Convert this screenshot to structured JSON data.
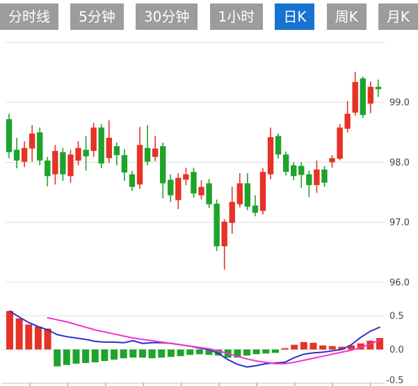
{
  "toolbar": {
    "tabs": [
      {
        "id": "time-line",
        "label": "分时线",
        "active": false
      },
      {
        "id": "5min",
        "label": "5分钟",
        "active": false
      },
      {
        "id": "30min",
        "label": "30分钟",
        "active": false
      },
      {
        "id": "1hour",
        "label": "1小时",
        "active": false
      },
      {
        "id": "daily-k",
        "label": "日K",
        "active": true
      },
      {
        "id": "weekly-k",
        "label": "周K",
        "active": false
      },
      {
        "id": "monthly-k",
        "label": "月K",
        "active": false
      }
    ],
    "colors": {
      "tab_bg": "#9c9c9c",
      "tab_active_bg": "#1673d0",
      "tab_text": "#ffffff"
    }
  },
  "chart_data": [
    {
      "type": "candlestick",
      "title": "",
      "xlabel": "",
      "ylabel": "",
      "y_axis": {
        "tick_labels": [
          "99.0",
          "98.0",
          "97.0",
          "96.0"
        ],
        "tick_values": [
          99.0,
          98.0,
          97.0,
          96.0
        ],
        "grid_values": [
          100.0,
          99.0,
          98.0,
          97.0,
          96.0
        ],
        "range": [
          95.9,
          100.05
        ],
        "grid": "horizontal-only",
        "labels_side": "right"
      },
      "legend_position": "none",
      "colors": {
        "up": "#e63227",
        "down": "#1ea32b"
      },
      "convention": "red-up-green-down",
      "candles": [
        {
          "o": 98.72,
          "h": 98.81,
          "l": 98.07,
          "c": 98.17
        },
        {
          "o": 98.21,
          "h": 98.41,
          "l": 97.9,
          "c": 98.03
        },
        {
          "o": 98.01,
          "h": 98.35,
          "l": 97.92,
          "c": 98.24
        },
        {
          "o": 98.23,
          "h": 98.62,
          "l": 98.01,
          "c": 98.48
        },
        {
          "o": 98.5,
          "h": 98.58,
          "l": 97.95,
          "c": 98.03
        },
        {
          "o": 98.03,
          "h": 98.09,
          "l": 97.6,
          "c": 97.77
        },
        {
          "o": 97.8,
          "h": 98.29,
          "l": 97.63,
          "c": 98.19
        },
        {
          "o": 98.17,
          "h": 98.24,
          "l": 97.69,
          "c": 97.8
        },
        {
          "o": 97.77,
          "h": 98.21,
          "l": 97.66,
          "c": 98.13
        },
        {
          "o": 98.03,
          "h": 98.35,
          "l": 97.95,
          "c": 98.24
        },
        {
          "o": 98.21,
          "h": 98.44,
          "l": 97.86,
          "c": 98.1
        },
        {
          "o": 98.19,
          "h": 98.66,
          "l": 98.09,
          "c": 98.58
        },
        {
          "o": 98.58,
          "h": 98.64,
          "l": 97.9,
          "c": 97.98
        },
        {
          "o": 98.07,
          "h": 98.7,
          "l": 97.99,
          "c": 98.41
        },
        {
          "o": 98.27,
          "h": 98.33,
          "l": 97.95,
          "c": 98.12
        },
        {
          "o": 98.12,
          "h": 98.22,
          "l": 97.69,
          "c": 97.83
        },
        {
          "o": 97.8,
          "h": 97.86,
          "l": 97.52,
          "c": 97.59
        },
        {
          "o": 97.63,
          "h": 98.59,
          "l": 97.56,
          "c": 98.29
        },
        {
          "o": 98.24,
          "h": 98.62,
          "l": 97.95,
          "c": 98.01
        },
        {
          "o": 98.09,
          "h": 98.44,
          "l": 98.02,
          "c": 98.23
        },
        {
          "o": 98.27,
          "h": 98.33,
          "l": 97.4,
          "c": 97.65
        },
        {
          "o": 97.71,
          "h": 97.8,
          "l": 97.34,
          "c": 97.45
        },
        {
          "o": 97.37,
          "h": 97.82,
          "l": 97.22,
          "c": 97.74
        },
        {
          "o": 97.71,
          "h": 97.91,
          "l": 97.62,
          "c": 97.8
        },
        {
          "o": 97.84,
          "h": 97.91,
          "l": 97.41,
          "c": 97.48
        },
        {
          "o": 97.45,
          "h": 97.7,
          "l": 97.38,
          "c": 97.59
        },
        {
          "o": 97.65,
          "h": 97.72,
          "l": 97.24,
          "c": 97.3
        },
        {
          "o": 97.31,
          "h": 97.38,
          "l": 96.52,
          "c": 96.6
        },
        {
          "o": 96.6,
          "h": 97.05,
          "l": 96.21,
          "c": 97.01
        },
        {
          "o": 96.99,
          "h": 97.59,
          "l": 96.81,
          "c": 97.34
        },
        {
          "o": 97.3,
          "h": 97.82,
          "l": 97.25,
          "c": 97.65
        },
        {
          "o": 97.65,
          "h": 97.82,
          "l": 97.2,
          "c": 97.26
        },
        {
          "o": 97.28,
          "h": 97.45,
          "l": 97.1,
          "c": 97.16
        },
        {
          "o": 97.19,
          "h": 97.9,
          "l": 97.13,
          "c": 97.84
        },
        {
          "o": 97.8,
          "h": 98.58,
          "l": 97.72,
          "c": 98.42
        },
        {
          "o": 98.44,
          "h": 98.48,
          "l": 98.06,
          "c": 98.13
        },
        {
          "o": 98.13,
          "h": 98.18,
          "l": 97.78,
          "c": 97.84
        },
        {
          "o": 97.95,
          "h": 98.0,
          "l": 97.7,
          "c": 97.77
        },
        {
          "o": 97.94,
          "h": 98.0,
          "l": 97.57,
          "c": 97.79
        },
        {
          "o": 97.8,
          "h": 97.86,
          "l": 97.42,
          "c": 97.62
        },
        {
          "o": 97.62,
          "h": 98.03,
          "l": 97.49,
          "c": 97.88
        },
        {
          "o": 97.88,
          "h": 97.94,
          "l": 97.59,
          "c": 97.66
        },
        {
          "o": 98.0,
          "h": 98.12,
          "l": 97.91,
          "c": 98.07
        },
        {
          "o": 98.06,
          "h": 98.64,
          "l": 98.03,
          "c": 98.58
        },
        {
          "o": 98.56,
          "h": 99.02,
          "l": 98.5,
          "c": 98.81
        },
        {
          "o": 98.83,
          "h": 99.51,
          "l": 98.78,
          "c": 99.34
        },
        {
          "o": 99.4,
          "h": 99.43,
          "l": 98.74,
          "c": 98.79
        },
        {
          "o": 98.98,
          "h": 99.35,
          "l": 98.82,
          "c": 99.26
        },
        {
          "o": 99.26,
          "h": 99.38,
          "l": 99.09,
          "c": 99.22
        }
      ]
    },
    {
      "type": "bar",
      "subtype": "macd-histogram-with-lines",
      "title": "",
      "y_axis": {
        "tick_labels": [
          "0.5",
          "0.0",
          "-0.5"
        ],
        "tick_values": [
          0.5,
          0.0,
          -0.5
        ],
        "range": [
          -0.55,
          0.6
        ],
        "grid": "horizontal-only",
        "labels_side": "right"
      },
      "x_axis": {
        "tick_count": 10,
        "tick_labels": []
      },
      "colors": {
        "positive": "#e63227",
        "negative": "#1ea32b"
      },
      "values": [
        0.57,
        0.46,
        0.37,
        0.34,
        0.31,
        -0.25,
        -0.23,
        -0.21,
        -0.2,
        -0.19,
        -0.17,
        -0.15,
        -0.13,
        -0.12,
        -0.12,
        -0.13,
        -0.12,
        -0.11,
        -0.1,
        -0.08,
        -0.07,
        -0.08,
        -0.09,
        -0.12,
        -0.12,
        -0.09,
        -0.07,
        -0.06,
        -0.05,
        0.02,
        0.07,
        0.11,
        0.1,
        0.06,
        0.05,
        0.04,
        0.06,
        0.09,
        0.13,
        0.17
      ],
      "series": [
        {
          "name": "DIF",
          "color": "#2b2dd0",
          "start_index": 0,
          "values": [
            0.57,
            0.48,
            0.4,
            0.34,
            0.29,
            0.22,
            0.19,
            0.17,
            0.15,
            0.12,
            0.11,
            0.11,
            0.1,
            0.13,
            0.09,
            0.1,
            0.1,
            0.09,
            0.07,
            0.05,
            0.02,
            0.0,
            -0.06,
            -0.15,
            -0.22,
            -0.26,
            -0.24,
            -0.21,
            -0.2,
            -0.19,
            -0.12,
            -0.07,
            -0.05,
            -0.04,
            -0.02,
            0.0,
            0.07,
            0.18,
            0.27,
            0.33
          ]
        },
        {
          "name": "DEA",
          "color": "#f72fce",
          "start_index": 4,
          "values": [
            0.47,
            0.44,
            0.41,
            0.37,
            0.33,
            0.29,
            0.26,
            0.23,
            0.2,
            0.17,
            0.15,
            0.13,
            0.11,
            0.09,
            0.07,
            0.05,
            0.03,
            0.01,
            -0.02,
            -0.06,
            -0.1,
            -0.14,
            -0.17,
            -0.19,
            -0.21,
            -0.21,
            -0.19,
            -0.16,
            -0.13,
            -0.1,
            -0.07,
            -0.04,
            -0.01,
            0.03,
            0.08,
            0.14
          ]
        }
      ]
    }
  ]
}
